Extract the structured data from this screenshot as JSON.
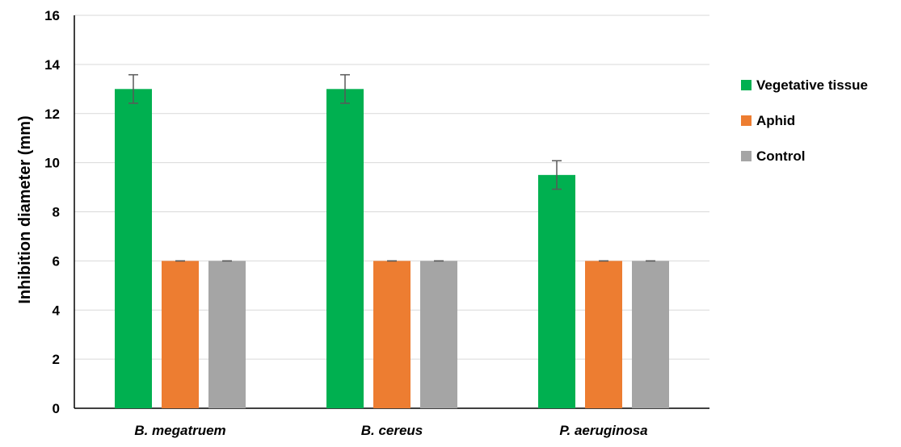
{
  "chart_data": {
    "type": "bar",
    "title": "",
    "xlabel": "",
    "ylabel": "Inhibition diameter (mm)",
    "ylim": [
      0,
      16
    ],
    "yticks": [
      0,
      2,
      4,
      6,
      8,
      10,
      12,
      14,
      16
    ],
    "grid": true,
    "legend_position": "right",
    "categories": [
      "B. megatruem",
      "B. cereus",
      "P. aeruginosa"
    ],
    "series": [
      {
        "name": "Vegetative tissue",
        "color": "#00B050",
        "values": [
          13,
          13,
          9.5
        ],
        "errors": [
          0.58,
          0.58,
          0.58
        ]
      },
      {
        "name": "Aphid",
        "color": "#ED7D31",
        "values": [
          6,
          6,
          6
        ],
        "errors": [
          0,
          0,
          0
        ]
      },
      {
        "name": "Control",
        "color": "#A5A5A5",
        "values": [
          6,
          6,
          6
        ],
        "errors": [
          0,
          0,
          0
        ]
      }
    ]
  }
}
